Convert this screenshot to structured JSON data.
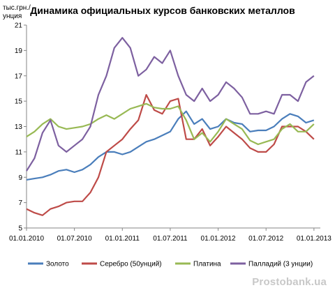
{
  "chart_data": {
    "type": "line",
    "title": "Динамика официальных курсов банковских металлов",
    "ylabel": "тыс.грн./\nунция",
    "xlabel": "",
    "ylim": [
      5,
      21
    ],
    "y_ticks": [
      "5",
      "7",
      "9",
      "11",
      "13",
      "15",
      "17",
      "19",
      "21"
    ],
    "x_ticks": [
      "01.01.2010",
      "01.07.2010",
      "01.01.2011",
      "01.07.2011",
      "01.01.2012",
      "01.07.2012",
      "01.01.2013"
    ],
    "grid": false,
    "legend_position": "bottom",
    "x": [
      "2010-01",
      "2010-02",
      "2010-03",
      "2010-04",
      "2010-05",
      "2010-06",
      "2010-07",
      "2010-08",
      "2010-09",
      "2010-10",
      "2010-11",
      "2010-12",
      "2011-01",
      "2011-02",
      "2011-03",
      "2011-04",
      "2011-05",
      "2011-06",
      "2011-07",
      "2011-08",
      "2011-09",
      "2011-10",
      "2011-11",
      "2011-12",
      "2012-01",
      "2012-02",
      "2012-03",
      "2012-04",
      "2012-05",
      "2012-06",
      "2012-07",
      "2012-08",
      "2012-09",
      "2012-10",
      "2012-11",
      "2012-12",
      "2013-01"
    ],
    "series": [
      {
        "name": "Золото",
        "color": "#4a7ebb",
        "values": [
          8.8,
          8.9,
          9.0,
          9.2,
          9.5,
          9.6,
          9.4,
          9.6,
          10.0,
          10.6,
          11.0,
          11.0,
          10.8,
          11.0,
          11.4,
          11.8,
          12.0,
          12.3,
          12.6,
          13.6,
          14.2,
          13.2,
          13.6,
          12.8,
          13.0,
          13.6,
          13.3,
          13.2,
          12.6,
          12.7,
          12.7,
          13.0,
          13.6,
          14.0,
          13.8,
          13.3,
          13.5
        ]
      },
      {
        "name": "Серебро (50унций)",
        "color": "#be4b48",
        "values": [
          6.5,
          6.2,
          6.0,
          6.5,
          6.7,
          7.0,
          7.1,
          7.1,
          7.8,
          9.0,
          11.0,
          11.5,
          12.0,
          12.8,
          13.5,
          15.5,
          14.3,
          14.0,
          15.0,
          15.2,
          12.0,
          12.0,
          12.8,
          11.5,
          12.2,
          13.0,
          12.5,
          12.0,
          11.3,
          11.0,
          11.0,
          11.6,
          13.0,
          13.0,
          13.0,
          12.6,
          12.0
        ]
      },
      {
        "name": "Платина",
        "color": "#98b954",
        "values": [
          12.2,
          12.6,
          13.2,
          13.6,
          13.0,
          12.8,
          12.9,
          13.0,
          13.2,
          13.6,
          13.9,
          13.6,
          14.0,
          14.4,
          14.6,
          14.8,
          14.5,
          14.4,
          14.4,
          14.6,
          13.5,
          12.0,
          12.5,
          11.8,
          12.6,
          13.6,
          13.2,
          12.8,
          11.9,
          11.6,
          11.8,
          12.0,
          12.8,
          13.2,
          12.6,
          12.6,
          13.2
        ]
      },
      {
        "name": "Палладий (3 унции)",
        "color": "#7d60a0",
        "values": [
          9.5,
          10.5,
          12.5,
          13.5,
          11.5,
          11.0,
          11.5,
          12.0,
          13.0,
          15.5,
          17.0,
          19.2,
          20.0,
          19.2,
          17.0,
          17.5,
          18.5,
          18.0,
          19.0,
          17.0,
          15.5,
          15.0,
          16.0,
          15.0,
          15.5,
          16.5,
          16.0,
          15.3,
          14.0,
          14.0,
          14.2,
          14.0,
          15.5,
          15.5,
          15.0,
          16.5,
          17.0
        ]
      }
    ]
  },
  "watermark": "Prostobank.ua"
}
